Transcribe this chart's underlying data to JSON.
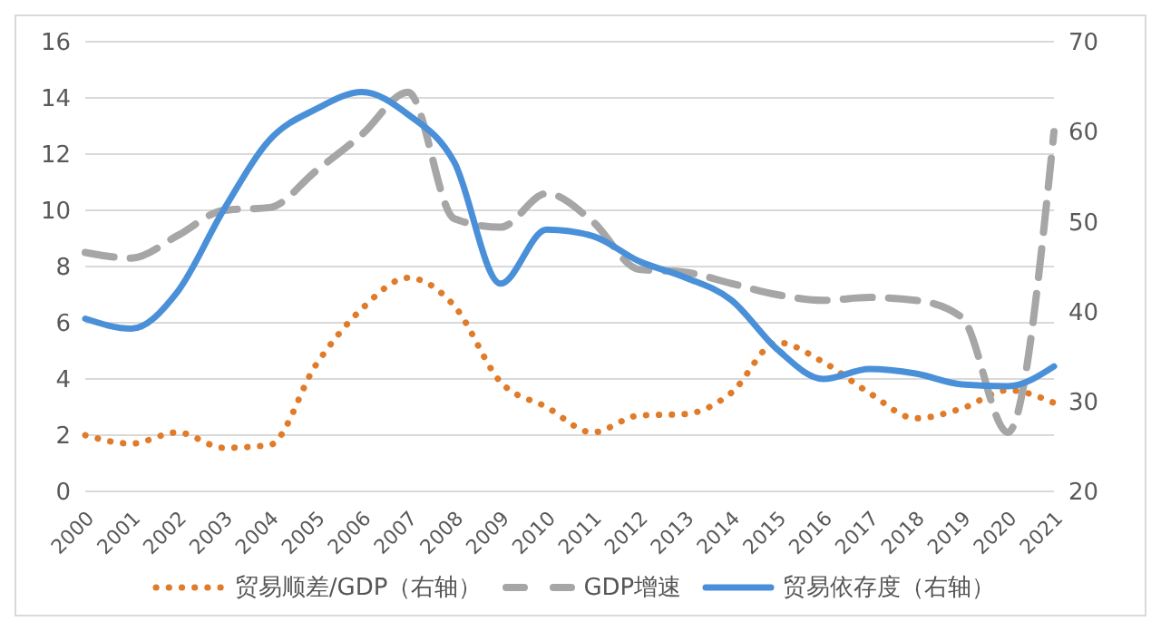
{
  "chart_data": {
    "type": "line",
    "categories": [
      "2000",
      "2001",
      "2002",
      "2003",
      "2004",
      "2005",
      "2006",
      "2007",
      "2008",
      "2009",
      "2010",
      "2011",
      "2012",
      "2013",
      "2014",
      "2015",
      "2016",
      "2017",
      "2018",
      "2019",
      "2020",
      "2021"
    ],
    "series": [
      {
        "name": "贸易顺差/GDP（右轴）",
        "color": "#e07b2a",
        "line_style": "dotted",
        "values": [
          2.0,
          1.7,
          2.1,
          1.55,
          1.65,
          4.5,
          6.5,
          7.6,
          6.6,
          3.9,
          3.0,
          2.1,
          2.7,
          2.75,
          3.5,
          5.3,
          4.6,
          3.5,
          2.6,
          2.95,
          3.6,
          3.15
        ]
      },
      {
        "name": "GDP增速",
        "color": "#a6a6a6",
        "line_style": "dashed",
        "values": [
          8.5,
          8.3,
          9.1,
          10.0,
          10.1,
          11.4,
          12.7,
          14.2,
          9.7,
          9.4,
          10.6,
          9.6,
          7.9,
          7.8,
          7.4,
          7.0,
          6.8,
          6.9,
          6.8,
          6.2,
          2.1,
          12.8
        ]
      },
      {
        "name": "贸易依存度（右轴）",
        "color": "#4a90d9",
        "line_style": "solid",
        "axis": "y2",
        "values": [
          39.2,
          38.1,
          42.2,
          51.3,
          59.1,
          62.5,
          64.4,
          61.9,
          56.6,
          43.1,
          49.1,
          48.4,
          45.6,
          43.8,
          41.3,
          35.8,
          32.5,
          33.6,
          33.1,
          31.9,
          31.7,
          33.9
        ]
      }
    ],
    "ylim": [
      0,
      16
    ],
    "yticks": [
      0,
      2,
      4,
      6,
      8,
      10,
      12,
      14,
      16
    ],
    "y2lim": [
      20,
      70
    ],
    "y2ticks": [
      20,
      30,
      40,
      50,
      60,
      70
    ],
    "grid": "y",
    "legend": "bottom",
    "marker": "none"
  }
}
